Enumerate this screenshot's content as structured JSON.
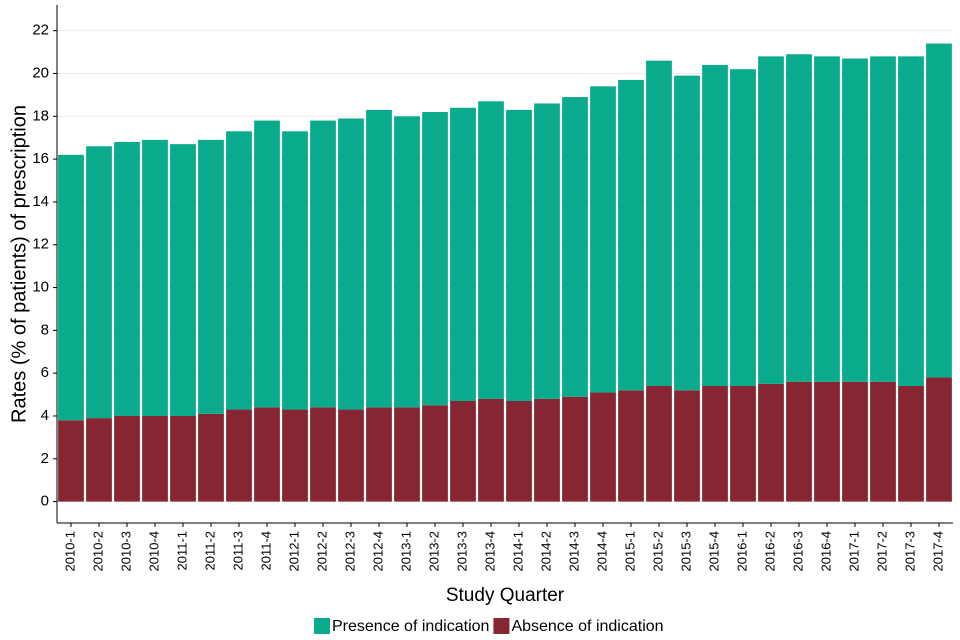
{
  "chart_data": {
    "type": "stacked_bar",
    "x_label": "Study Quarter",
    "y_label": "Rates (% of patients) of prescription",
    "categories": [
      "2010-1",
      "2010-2",
      "2010-3",
      "2010-4",
      "2011-1",
      "2011-2",
      "2011-3",
      "2011-4",
      "2012-1",
      "2012-2",
      "2012-3",
      "2012-4",
      "2013-1",
      "2013-2",
      "2013-3",
      "2013-4",
      "2014-1",
      "2014-2",
      "2014-3",
      "2014-4",
      "2015-1",
      "2015-2",
      "2015-3",
      "2015-4",
      "2016-1",
      "2016-2",
      "2016-3",
      "2016-4",
      "2017-1",
      "2017-2",
      "2017-3",
      "2017-4"
    ],
    "series": [
      {
        "name": "Presence of indication",
        "color": "#0aab8d",
        "values": [
          12.4,
          12.7,
          12.8,
          12.9,
          12.7,
          12.8,
          13.0,
          13.4,
          13.0,
          13.4,
          13.6,
          13.9,
          13.6,
          13.7,
          13.7,
          13.9,
          13.6,
          13.8,
          14.0,
          14.3,
          14.5,
          15.2,
          14.7,
          15.0,
          14.8,
          15.3,
          15.3,
          15.2,
          15.1,
          15.2,
          15.4,
          15.6
        ]
      },
      {
        "name": "Absence of indication",
        "color": "#862633",
        "values": [
          3.8,
          3.9,
          4.0,
          4.0,
          4.0,
          4.1,
          4.3,
          4.4,
          4.3,
          4.4,
          4.3,
          4.4,
          4.4,
          4.5,
          4.7,
          4.8,
          4.7,
          4.8,
          4.9,
          5.1,
          5.2,
          5.4,
          5.2,
          5.4,
          5.4,
          5.5,
          5.6,
          5.6,
          5.6,
          5.6,
          5.4,
          5.8
        ]
      }
    ],
    "ylim": [
      -1,
      23.2
    ],
    "yticks": [
      0,
      2,
      4,
      6,
      8,
      10,
      12,
      14,
      16,
      18,
      20,
      22
    ],
    "grid": true,
    "legend": "bottom"
  }
}
